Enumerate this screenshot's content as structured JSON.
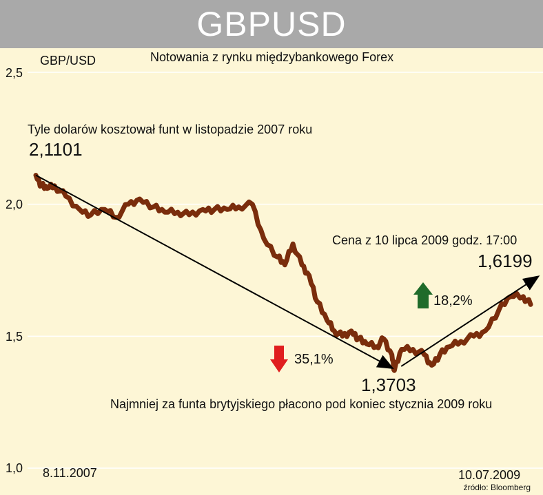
{
  "header": {
    "title": "GBPUSD"
  },
  "subtitle": "Notowania z rynku międzybankowego Forex",
  "unit_label": "GBP/USD",
  "source": "źródło: Bloomberg",
  "colors": {
    "background": "#fdf6d6",
    "header": "#a9a9a9",
    "line": "#7a2d0c",
    "arrow_up": "#1f6b2a",
    "arrow_down": "#e01e1e",
    "trend": "#000000",
    "grid": "#ffffff"
  },
  "annotations": {
    "high_note": "Tyle dolarów kosztował funt w listopadzie 2007 roku",
    "high_value": "2,1101",
    "low_note": "Najmniej za funta brytyjskiego płacono pod koniec stycznia 2009 roku",
    "low_value": "1,3703",
    "last_note": "Cena z 10 lipca 2009 godz. 17:00",
    "last_value": "1,6199",
    "drop_pct": "35,1%",
    "rise_pct": "18,2%"
  },
  "chart_data": {
    "type": "line",
    "title": "GBPUSD",
    "subtitle": "Notowania z rynku międzybankowego Forex",
    "ylabel": "GBP/USD",
    "ylim": [
      1.0,
      2.5
    ],
    "yticks": [
      "1,0",
      "1,5",
      "2,0",
      "2,5"
    ],
    "ytick_values": [
      1.0,
      1.5,
      2.0,
      2.5
    ],
    "x_start_label": "8.11.2007",
    "x_end_label": "10.07.2009",
    "grid": true,
    "series": [
      {
        "x": [
          "2007-11-08",
          "2007-11-15",
          "2007-11-22",
          "2007-12-01",
          "2007-12-15",
          "2008-01-01",
          "2008-01-15",
          "2008-02-01",
          "2008-02-15",
          "2008-03-01",
          "2008-03-15",
          "2008-04-01",
          "2008-04-15",
          "2008-05-01",
          "2008-05-15",
          "2008-06-01",
          "2008-06-15",
          "2008-07-01",
          "2008-07-15",
          "2008-08-01",
          "2008-08-15",
          "2008-09-01",
          "2008-09-10",
          "2008-09-20",
          "2008-10-01",
          "2008-10-10",
          "2008-10-20",
          "2008-11-01",
          "2008-11-10",
          "2008-11-20",
          "2008-12-01",
          "2008-12-10",
          "2008-12-20",
          "2009-01-01",
          "2009-01-10",
          "2009-01-20",
          "2009-01-23",
          "2009-02-01",
          "2009-02-15",
          "2009-03-01",
          "2009-03-10",
          "2009-03-20",
          "2009-04-01",
          "2009-04-15",
          "2009-05-01",
          "2009-05-15",
          "2009-06-01",
          "2009-06-15",
          "2009-07-01",
          "2009-07-10"
        ],
        "values": [
          2.11,
          2.07,
          2.06,
          2.07,
          2.03,
          1.98,
          1.96,
          1.98,
          1.95,
          2.0,
          2.02,
          1.99,
          1.97,
          1.97,
          1.96,
          1.98,
          1.98,
          1.98,
          1.99,
          2.0,
          1.87,
          1.8,
          1.77,
          1.85,
          1.77,
          1.73,
          1.63,
          1.56,
          1.52,
          1.5,
          1.52,
          1.49,
          1.47,
          1.46,
          1.49,
          1.43,
          1.37,
          1.45,
          1.45,
          1.43,
          1.39,
          1.43,
          1.46,
          1.48,
          1.5,
          1.52,
          1.6,
          1.65,
          1.65,
          1.62
        ]
      }
    ],
    "trend_lines": [
      {
        "from": {
          "x": "2007-11-08",
          "y": 2.1101
        },
        "to": {
          "x": "2009-01-23",
          "y": 1.3703
        }
      },
      {
        "from": {
          "x": "2009-01-23",
          "y": 1.3703
        },
        "to": {
          "x": "2009-07-10",
          "y": 1.6199
        }
      }
    ]
  }
}
